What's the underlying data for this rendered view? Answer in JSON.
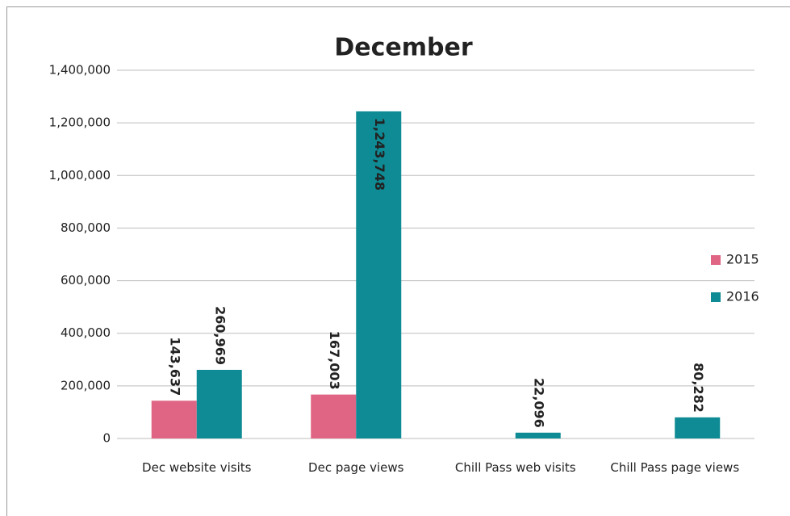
{
  "chart_data": {
    "type": "bar",
    "title": "December",
    "categories": [
      "Dec website visits",
      "Dec page views",
      "Chill Pass web visits",
      "Chill Pass page views"
    ],
    "series": [
      {
        "name": "2015",
        "color": "#e06584",
        "values": [
          143637,
          167003,
          null,
          null
        ],
        "value_labels": [
          "143,637",
          "167,003",
          null,
          null
        ]
      },
      {
        "name": "2016",
        "color": "#0e8b94",
        "values": [
          260969,
          1243748,
          22096,
          80282
        ],
        "value_labels": [
          "260,969",
          "1,243,748",
          "22,096",
          "80,282"
        ]
      }
    ],
    "ylim": [
      0,
      1400000
    ],
    "yticks": [
      0,
      {
        "value": 200000,
        "label": "200,000"
      },
      {
        "value": 400000,
        "label": "400,000"
      },
      {
        "value": 600000,
        "label": "600,000"
      },
      {
        "value": 800000,
        "label": "800,000"
      },
      {
        "value": 1000000,
        "label": "1,000,000"
      },
      {
        "value": 1200000,
        "label": "1,200,000"
      },
      {
        "value": 1400000,
        "label": "1,400,000"
      }
    ],
    "grid": true,
    "legend": "right"
  }
}
